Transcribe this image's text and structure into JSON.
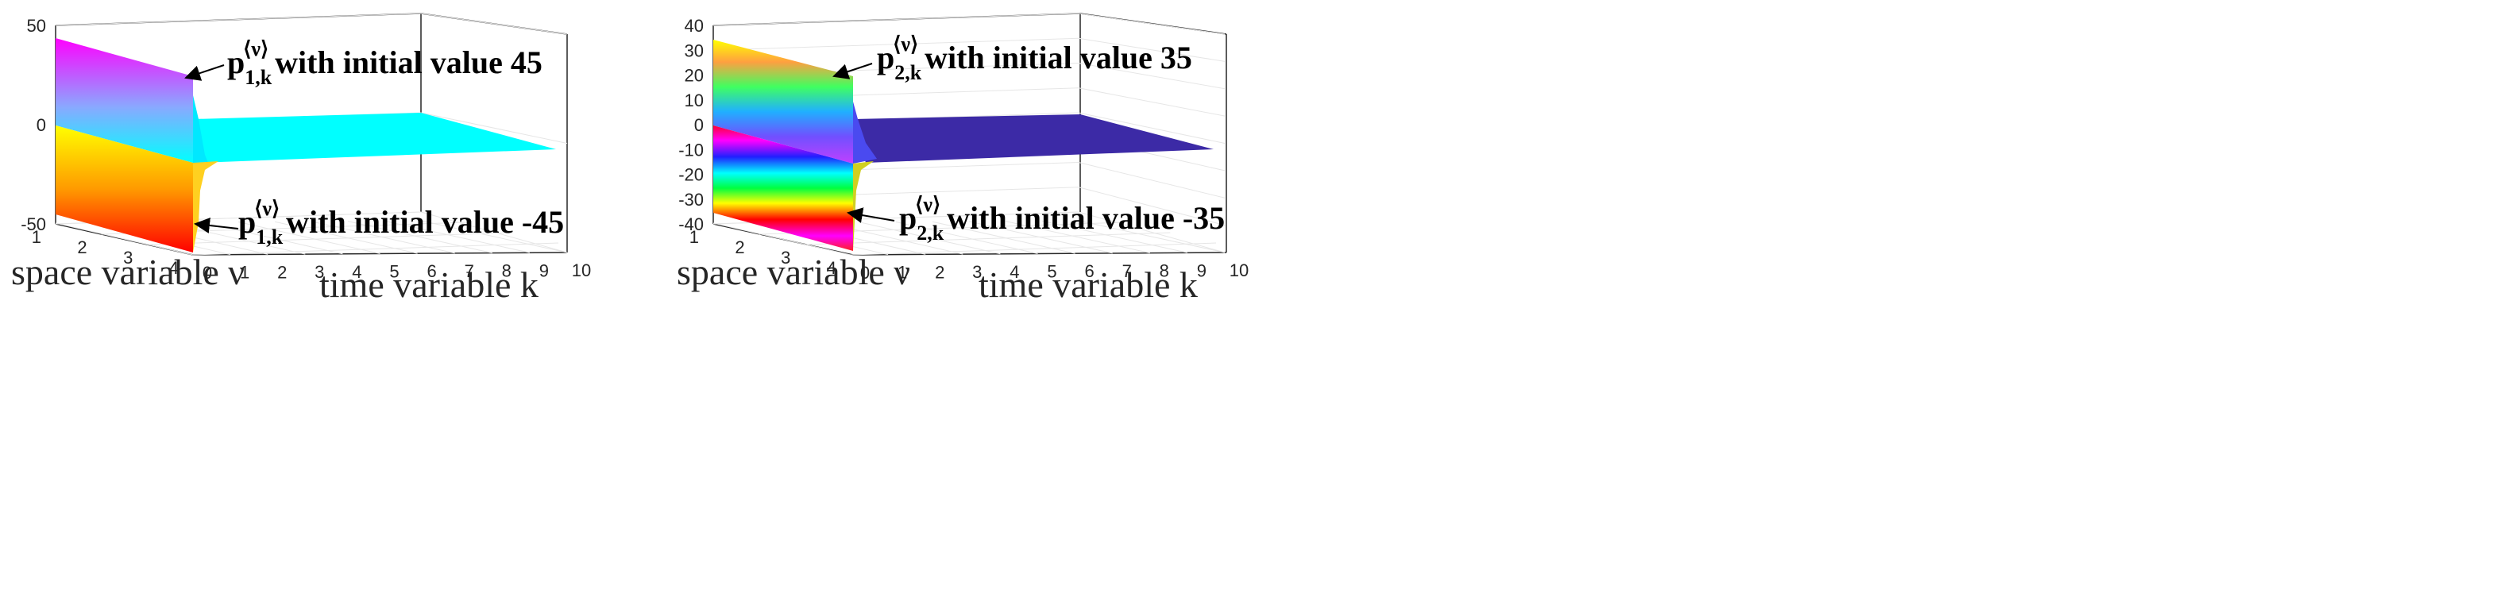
{
  "chart_data": [
    {
      "type": "surface3d",
      "title": "",
      "xlabel": "time variable k",
      "ylabel": "space variable ν",
      "zlabel": "",
      "x_ticks": [
        "0",
        "1",
        "2",
        "3",
        "4",
        "5",
        "6",
        "7",
        "8",
        "9",
        "10"
      ],
      "y_ticks": [
        "1",
        "2",
        "3",
        "4"
      ],
      "z_ticks": [
        "50",
        "0",
        "-50"
      ],
      "xlim": [
        0,
        10
      ],
      "ylim": [
        1,
        4
      ],
      "zlim": [
        -50,
        50
      ],
      "grid": true,
      "colors": {
        "top_high": "#ff00ff",
        "top_low": "#00ffff",
        "bottom_high": "#ffff00",
        "bottom_low": "#ff0000",
        "plateau": "#00ffff"
      },
      "series": [
        {
          "name": "p_{1,k}^{⟨ν⟩}",
          "initial_value": 45,
          "settled_value": 0
        },
        {
          "name": "p_{1,k}^{⟨ν⟩}",
          "initial_value": -45,
          "settled_value": 0
        }
      ],
      "annotations": [
        {
          "symbol": "p",
          "sub": "1,k",
          "sup": "⟨ν⟩",
          "text": "with initial value 45"
        },
        {
          "symbol": "p",
          "sub": "1,k",
          "sup": "⟨ν⟩",
          "text": "with initial value -45"
        }
      ]
    },
    {
      "type": "surface3d",
      "title": "",
      "xlabel": "time variable k",
      "ylabel": "space variable ν",
      "zlabel": "",
      "x_ticks": [
        "0",
        "1",
        "2",
        "3",
        "4",
        "5",
        "6",
        "7",
        "8",
        "9",
        "10"
      ],
      "y_ticks": [
        "1",
        "2",
        "3",
        "4"
      ],
      "z_ticks": [
        "40",
        "30",
        "20",
        "10",
        "0",
        "-10",
        "-20",
        "-30",
        "-40"
      ],
      "xlim": [
        0,
        10
      ],
      "ylim": [
        1,
        4
      ],
      "zlim": [
        -40,
        40
      ],
      "grid": true,
      "colors": {
        "plateau": "#3c2aa6"
      },
      "series": [
        {
          "name": "p_{2,k}^{⟨ν⟩}",
          "initial_value": 35,
          "settled_value": -10
        },
        {
          "name": "p_{2,k}^{⟨ν⟩}",
          "initial_value": -35,
          "settled_value": -10
        }
      ],
      "annotations": [
        {
          "symbol": "p",
          "sub": "2,k",
          "sup": "⟨ν⟩",
          "text": "with initial value 35"
        },
        {
          "symbol": "p",
          "sub": "2,k",
          "sup": "⟨ν⟩",
          "text": "with initial value -35"
        }
      ]
    }
  ]
}
